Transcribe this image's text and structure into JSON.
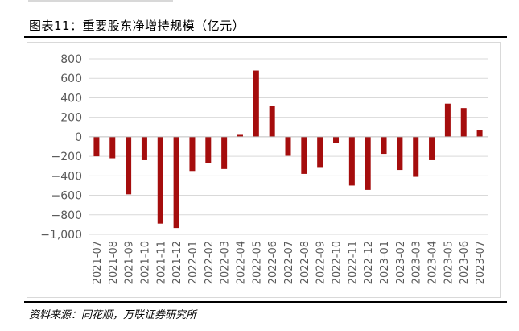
{
  "figure": {
    "title": "图表11：重要股东净增持规模（亿元）",
    "source": "资料来源：同花顺，万联证券研究所"
  },
  "colors": {
    "bar": "#A50D0D",
    "grid": "#D9D9D9",
    "axis": "#BFBFBF",
    "text": "#595959"
  },
  "chart_data": {
    "type": "bar",
    "title": "",
    "xlabel": "",
    "ylabel": "",
    "ylim": [
      -1000,
      800
    ],
    "yticks": [
      800,
      600,
      400,
      200,
      0,
      -200,
      -400,
      -600,
      -800,
      -1000
    ],
    "ytick_labels": [
      "800",
      "600",
      "400",
      "200",
      "0",
      "−200",
      "−400",
      "−600",
      "−800",
      "−1,000"
    ],
    "grid": true,
    "legend": "none",
    "categories": [
      "2021-07",
      "2021-08",
      "2021-09",
      "2021-10",
      "2021-11",
      "2021-12",
      "2022-01",
      "2022-02",
      "2022-03",
      "2022-04",
      "2022-05",
      "2022-06",
      "2022-07",
      "2022-08",
      "2022-09",
      "2022-10",
      "2022-11",
      "2022-12",
      "2023-01",
      "2023-02",
      "2023-03",
      "2023-04",
      "2023-05",
      "2023-06",
      "2023-07"
    ],
    "values": [
      -200,
      -220,
      -590,
      -240,
      -890,
      -935,
      -350,
      -270,
      -330,
      20,
      680,
      315,
      -195,
      -380,
      -310,
      -60,
      -500,
      -545,
      -175,
      -340,
      -410,
      -240,
      340,
      295,
      65
    ]
  }
}
